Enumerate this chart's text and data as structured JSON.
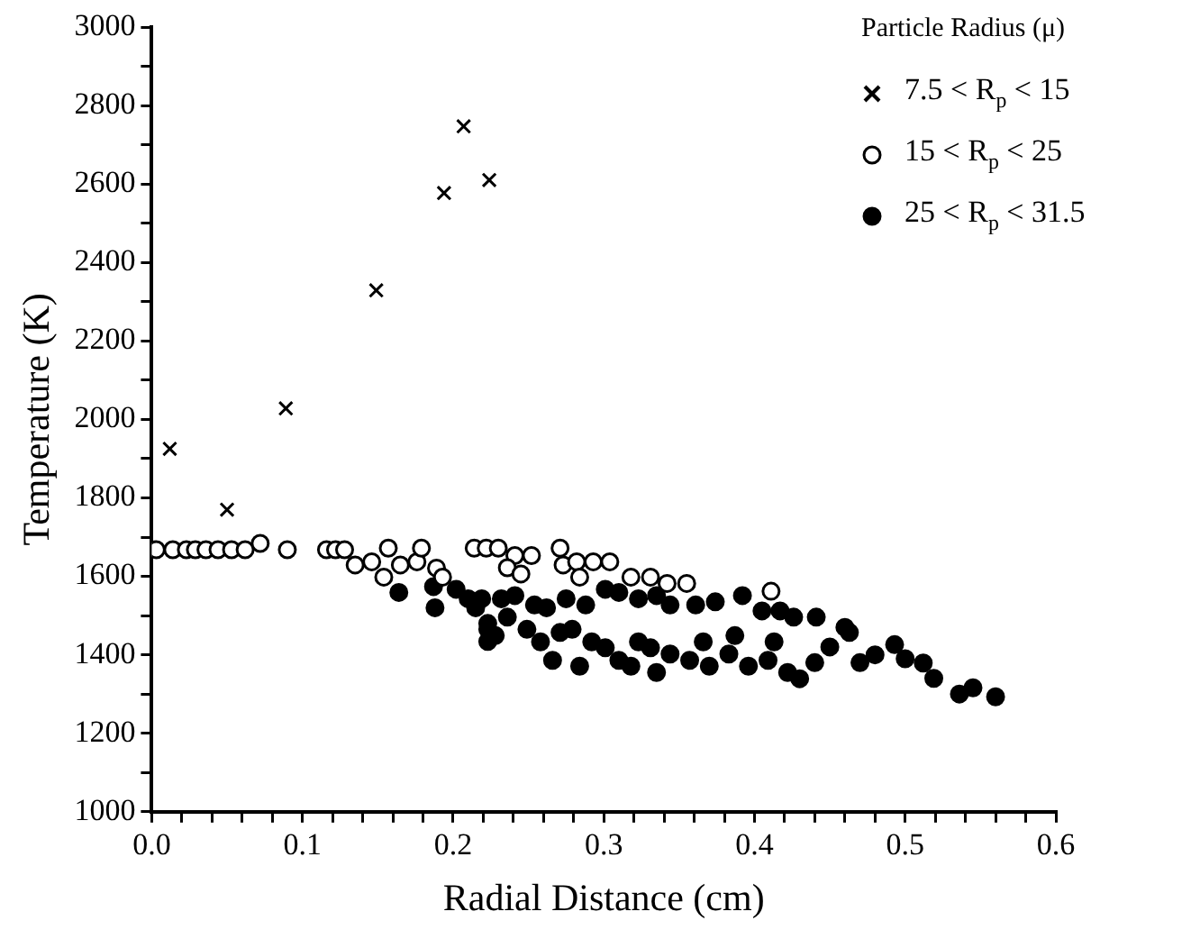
{
  "chart_data": {
    "type": "scatter",
    "xlabel": "Radial Distance (cm)",
    "ylabel": "Temperature (K)",
    "legend_title": "Particle Radius (μ)",
    "legend": "top right",
    "grid": false,
    "xlim": [
      0,
      0.6
    ],
    "ylim": [
      1000,
      3000
    ],
    "xticks": [
      {
        "value": 0,
        "label": "0.0"
      },
      {
        "value": 0.02,
        "label": null
      },
      {
        "value": 0.04,
        "label": null
      },
      {
        "value": 0.06,
        "label": null
      },
      {
        "value": 0.08,
        "label": null
      },
      {
        "value": 0.1,
        "label": "0.1"
      },
      {
        "value": 0.12,
        "label": null
      },
      {
        "value": 0.14,
        "label": null
      },
      {
        "value": 0.16,
        "label": null
      },
      {
        "value": 0.18,
        "label": null
      },
      {
        "value": 0.2,
        "label": "0.2"
      },
      {
        "value": 0.22,
        "label": null
      },
      {
        "value": 0.24,
        "label": null
      },
      {
        "value": 0.26,
        "label": null
      },
      {
        "value": 0.28,
        "label": null
      },
      {
        "value": 0.3,
        "label": "0.3"
      },
      {
        "value": 0.32,
        "label": null
      },
      {
        "value": 0.34,
        "label": null
      },
      {
        "value": 0.36,
        "label": null
      },
      {
        "value": 0.38,
        "label": null
      },
      {
        "value": 0.4,
        "label": "0.4"
      },
      {
        "value": 0.42,
        "label": null
      },
      {
        "value": 0.44,
        "label": null
      },
      {
        "value": 0.46,
        "label": null
      },
      {
        "value": 0.48,
        "label": null
      },
      {
        "value": 0.5,
        "label": "0.5"
      },
      {
        "value": 0.52,
        "label": null
      },
      {
        "value": 0.54,
        "label": null
      },
      {
        "value": 0.56,
        "label": null
      },
      {
        "value": 0.58,
        "label": null
      },
      {
        "value": 0.6,
        "label": "0.6"
      }
    ],
    "yticks": [
      1000,
      {
        "value": 1100,
        "label": null
      },
      1200,
      {
        "value": 1300,
        "label": null
      },
      1400,
      {
        "value": 1500,
        "label": null
      },
      1600,
      {
        "value": 1700,
        "label": null
      },
      1800,
      {
        "value": 1900,
        "label": null
      },
      2000,
      {
        "value": 2100,
        "label": null
      },
      2200,
      {
        "value": 2300,
        "label": null
      },
      2400,
      {
        "value": 2500,
        "label": null
      },
      2600,
      {
        "value": 2700,
        "label": null
      },
      2800,
      {
        "value": 2900,
        "label": null
      },
      3000
    ],
    "series": [
      {
        "name": "7.5 < R$_{p}$ < 15",
        "color": "#000000",
        "marker": "cross",
        "x": [
          0.012,
          0.05,
          0.089,
          0.149,
          0.194,
          0.207,
          0.224
        ],
        "values": [
          1925,
          1770,
          2028,
          2329,
          2577,
          2747,
          2610
        ]
      },
      {
        "name": "15 < R$_{p}$ < 25",
        "color": "#ffffff",
        "marker": "circle",
        "x": [
          0.003,
          0.014,
          0.023,
          0.029,
          0.036,
          0.044,
          0.053,
          0.062,
          0.072,
          0.09,
          0.116,
          0.122,
          0.128,
          0.135,
          0.146,
          0.157,
          0.154,
          0.165,
          0.176,
          0.179,
          0.189,
          0.193,
          0.214,
          0.222,
          0.23,
          0.241,
          0.252,
          0.236,
          0.245,
          0.271,
          0.273,
          0.282,
          0.293,
          0.304,
          0.284,
          0.318,
          0.331,
          0.342,
          0.355,
          0.411
        ],
        "values": [
          1668,
          1668,
          1668,
          1668,
          1668,
          1668,
          1668,
          1668,
          1684,
          1668,
          1668,
          1668,
          1668,
          1629,
          1637,
          1672,
          1598,
          1629,
          1637,
          1672,
          1621,
          1598,
          1672,
          1672,
          1672,
          1653,
          1653,
          1622,
          1606,
          1672,
          1629,
          1637,
          1637,
          1637,
          1598,
          1598,
          1598,
          1582,
          1582,
          1562
        ]
      },
      {
        "name": "25 < R$_{p}$ < 31.5",
        "color": "#000000",
        "marker": "circle",
        "x": [
          0.164,
          0.187,
          0.188,
          0.202,
          0.21,
          0.215,
          0.223,
          0.223,
          0.219,
          0.232,
          0.241,
          0.254,
          0.262,
          0.275,
          0.288,
          0.301,
          0.31,
          0.323,
          0.335,
          0.344,
          0.361,
          0.374,
          0.392,
          0.405,
          0.417,
          0.426,
          0.223,
          0.236,
          0.249,
          0.258,
          0.271,
          0.279,
          0.292,
          0.301,
          0.31,
          0.323,
          0.331,
          0.344,
          0.357,
          0.37,
          0.383,
          0.396,
          0.409,
          0.422,
          0.43,
          0.228,
          0.266,
          0.284,
          0.318,
          0.335,
          0.366,
          0.387,
          0.413,
          0.441,
          0.463,
          0.493,
          0.512,
          0.519,
          0.536,
          0.545,
          0.56,
          0.45,
          0.47,
          0.48,
          0.44,
          0.46,
          0.5
        ],
        "values": [
          1559,
          1574,
          1520,
          1567,
          1543,
          1520,
          1465,
          1434,
          1543,
          1543,
          1551,
          1527,
          1520,
          1543,
          1527,
          1567,
          1559,
          1543,
          1551,
          1527,
          1527,
          1535,
          1551,
          1512,
          1512,
          1496,
          1480,
          1496,
          1465,
          1433,
          1457,
          1465,
          1433,
          1418,
          1386,
          1433,
          1418,
          1402,
          1386,
          1371,
          1402,
          1371,
          1386,
          1355,
          1339,
          1449,
          1386,
          1371,
          1371,
          1355,
          1433,
          1449,
          1433,
          1496,
          1457,
          1426,
          1379,
          1340,
          1300,
          1316,
          1293,
          1420,
          1380,
          1400,
          1380,
          1470,
          1390
        ]
      }
    ]
  }
}
